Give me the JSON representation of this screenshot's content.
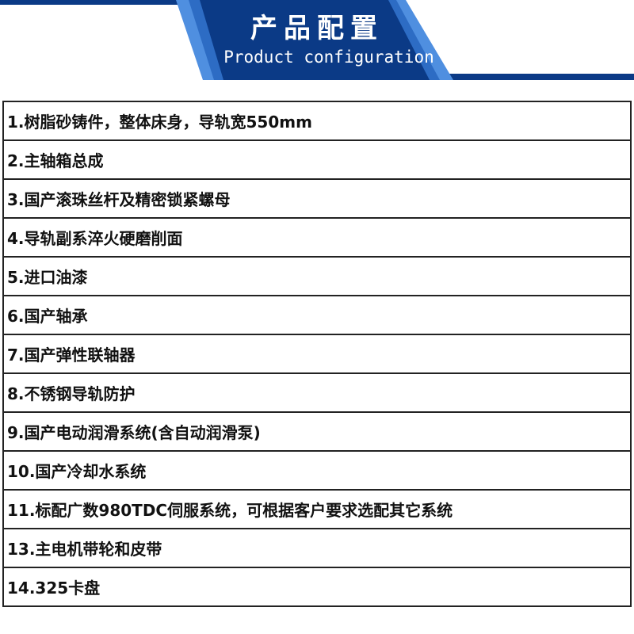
{
  "header": {
    "title_cn": "产品配置",
    "title_en": "Product configuration",
    "colors": {
      "dark_blue": "#0b3a86",
      "light_blue": "#4f8fe0"
    }
  },
  "items": [
    "1.树脂砂铸件，整体床身，导轨宽550mm",
    "2.主轴箱总成",
    "3.国产滚珠丝杆及精密锁紧螺母",
    "4.导轨副系淬火硬磨削面",
    "5.进口油漆",
    "6.国产轴承",
    "7.国产弹性联轴器",
    "8.不锈钢导轨防护",
    "9.国产电动润滑系统(含自动润滑泵)",
    "10.国产冷却水系统",
    "11.标配广数980TDC伺服系统，可根据客户要求选配其它系统",
    "13.主电机带轮和皮带",
    "14.325卡盘"
  ]
}
